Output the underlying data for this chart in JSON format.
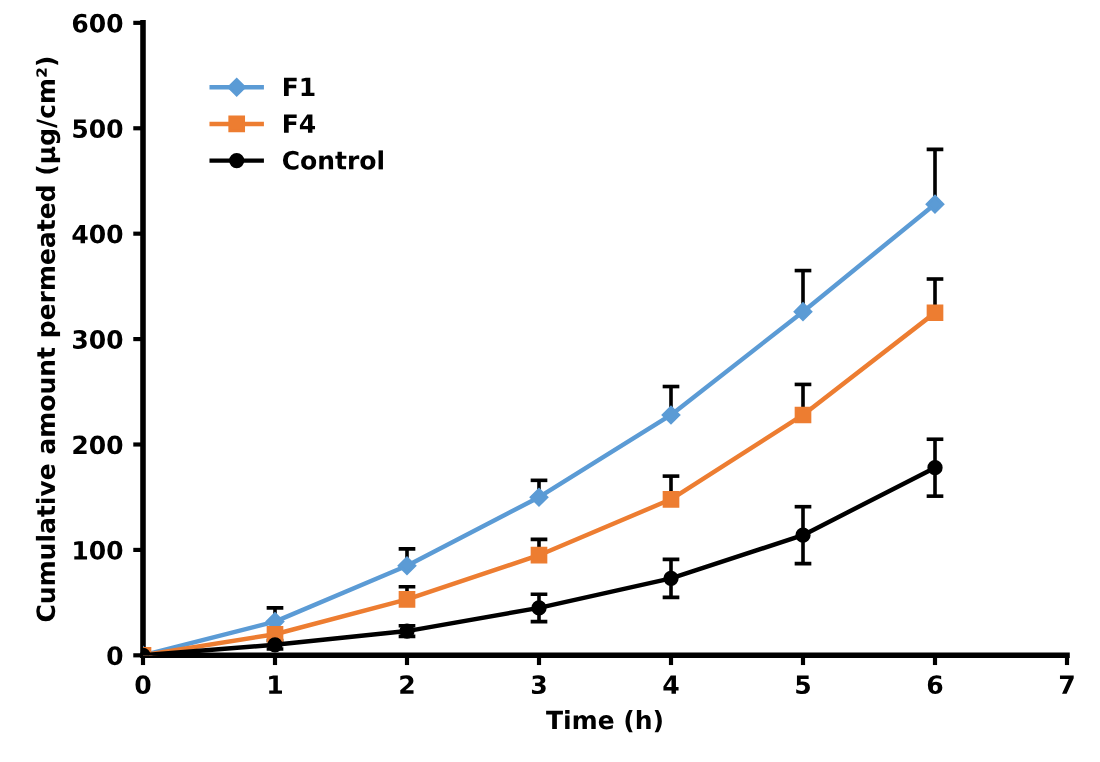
{
  "chart_data": {
    "type": "line",
    "xlabel": "Time (h)",
    "ylabel": "Cumulative amount permeated (µg/cm²)",
    "x": [
      0,
      1,
      2,
      3,
      4,
      5,
      6
    ],
    "xlim": [
      0,
      7
    ],
    "xticks": [
      0,
      1,
      2,
      3,
      4,
      5,
      6,
      7
    ],
    "ylim": [
      0,
      600
    ],
    "yticks": [
      0,
      100,
      200,
      300,
      400,
      500,
      600
    ],
    "grid": false,
    "legend": "top left",
    "line_style": "solid",
    "series": [
      {
        "name": "F1",
        "color": "#5b9bd5",
        "marker": "diamond",
        "values": [
          0,
          32,
          85,
          150,
          228,
          326,
          428
        ],
        "errors": [
          null,
          [
            32,
            45
          ],
          [
            85,
            101
          ],
          [
            150,
            166
          ],
          [
            228,
            255
          ],
          [
            326,
            365
          ],
          [
            428,
            480
          ]
        ]
      },
      {
        "name": "F4",
        "color": "#ed7d31",
        "marker": "square",
        "values": [
          0,
          20,
          53,
          95,
          148,
          228,
          325
        ],
        "errors": [
          null,
          null,
          [
            53,
            65
          ],
          [
            95,
            110
          ],
          [
            148,
            170
          ],
          [
            228,
            257
          ],
          [
            325,
            357
          ]
        ]
      },
      {
        "name": "Control",
        "color": "#000000",
        "marker": "circle",
        "values": [
          0,
          10,
          23,
          45,
          73,
          114,
          178
        ],
        "errors": [
          null,
          4,
          5,
          13,
          18,
          27,
          27
        ]
      }
    ]
  }
}
